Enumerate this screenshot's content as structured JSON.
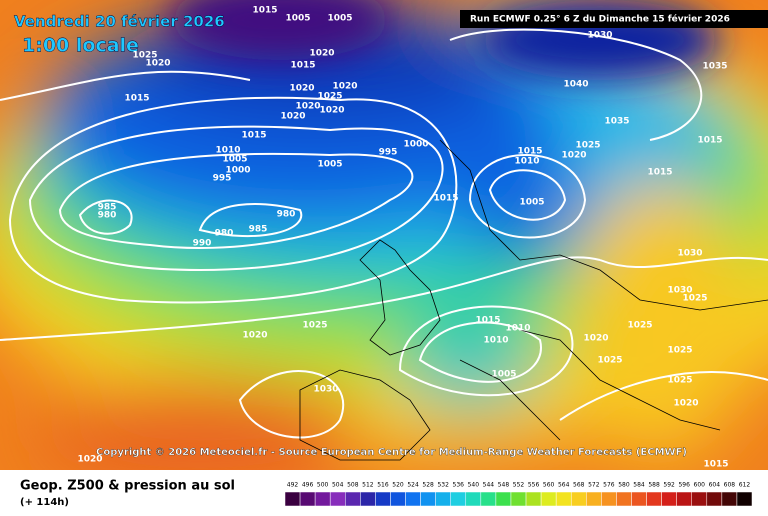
{
  "header": {
    "date": "Vendredi 20 février 2026",
    "time": "1:00 locale",
    "run": "Run ECMWF 0.25° 6 Z du Dimanche 15 février 2026"
  },
  "copyright": "Copyright © 2026 Meteociel.fr - Source European Centre for Medium-Range Weather Forecasts (ECMWF)",
  "footer": {
    "title": "Geop. Z500 & pression au sol",
    "lead": "(+ 114h)"
  },
  "isobar_labels": [
    1015,
    1005,
    1005,
    1030,
    1025,
    1020,
    1020,
    1015,
    1035,
    1020,
    1020,
    1025,
    1040,
    1015,
    1020,
    1020,
    1020,
    1035,
    1015,
    1000,
    1025,
    995,
    1015,
    1020,
    1015,
    1010,
    1005,
    1005,
    1010,
    1000,
    995,
    1015,
    1015,
    1005,
    985,
    980,
    980,
    985,
    980,
    990,
    1030,
    1030,
    1025,
    1025,
    1015,
    1010,
    1020,
    1025,
    1020,
    1010,
    1025,
    1025,
    1005,
    1030,
    1025,
    1020,
    1020,
    1015
  ],
  "colorbar": {
    "labels": [
      492,
      496,
      500,
      504,
      508,
      512,
      516,
      520,
      524,
      528,
      532,
      536,
      540,
      544,
      548,
      552,
      556,
      560,
      564,
      568,
      572,
      576,
      580,
      584,
      588,
      592,
      596,
      600,
      604,
      608,
      612
    ]
  }
}
